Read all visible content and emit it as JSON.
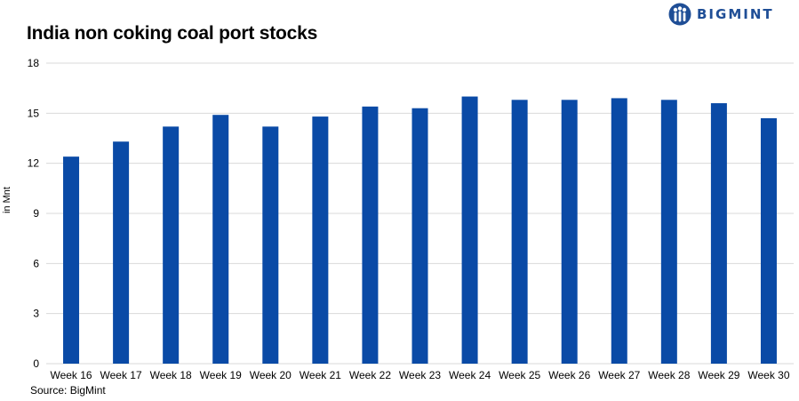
{
  "header": {
    "title": "India non coking coal port stocks",
    "brand": "BIGMINT"
  },
  "footer": {
    "source": "Source: BigMint"
  },
  "colors": {
    "bar": "#0a4aa6",
    "grid": "#d9d9d9",
    "brand": "#1f4e96"
  },
  "chart_data": {
    "type": "bar",
    "title": "India non coking coal port stocks",
    "ylabel": "in Mnt",
    "xlabel": "",
    "categories": [
      "Week 16",
      "Week 17",
      "Week 18",
      "Week 19",
      "Week 20",
      "Week 21",
      "Week 22",
      "Week 23",
      "Week 24",
      "Week 25",
      "Week 26",
      "Week 27",
      "Week 28",
      "Week 29",
      "Week 30"
    ],
    "values": [
      12.4,
      13.3,
      14.2,
      14.9,
      14.2,
      14.8,
      15.4,
      15.3,
      16.0,
      15.8,
      15.8,
      15.9,
      15.8,
      15.6,
      14.7
    ],
    "ylim": [
      0,
      18
    ],
    "yticks": [
      0,
      3,
      6,
      9,
      12,
      15,
      18
    ],
    "grid": true,
    "legend": "none"
  }
}
